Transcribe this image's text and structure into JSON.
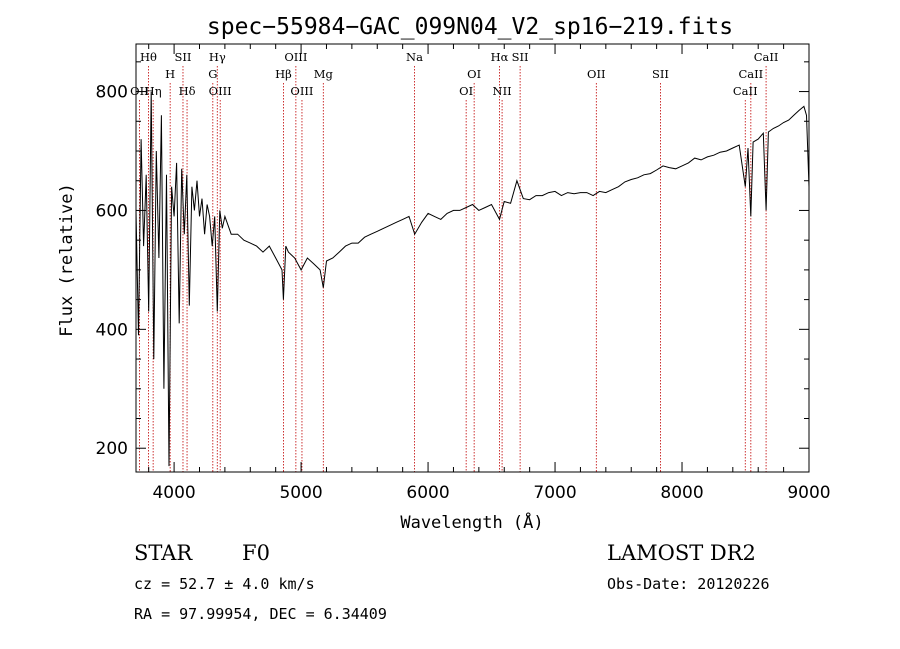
{
  "chart_data": {
    "type": "line",
    "title": "spec−55984−GAC_099N04_V2_sp16−219.fits",
    "xlabel": "Wavelength (Å)",
    "ylabel": "Flux (relative)",
    "xlim": [
      3700,
      9000
    ],
    "ylim": [
      160,
      880
    ],
    "grid": false,
    "xticks": [
      4000,
      5000,
      6000,
      7000,
      8000,
      9000
    ],
    "yticks": [
      200,
      400,
      600,
      800
    ],
    "series": [
      {
        "x": [
          3700,
          3720,
          3740,
          3760,
          3780,
          3800,
          3820,
          3840,
          3860,
          3880,
          3900,
          3920,
          3940,
          3960,
          3980,
          4000,
          4020,
          4040,
          4060,
          4080,
          4100,
          4120,
          4140,
          4160,
          4180,
          4200,
          4220,
          4240,
          4260,
          4280,
          4300,
          4320,
          4340,
          4360,
          4380,
          4400,
          4450,
          4500,
          4550,
          4600,
          4650,
          4700,
          4750,
          4800,
          4850,
          4861,
          4880,
          4900,
          4950,
          5000,
          5050,
          5100,
          5150,
          5175,
          5200,
          5250,
          5300,
          5350,
          5400,
          5450,
          5500,
          5550,
          5600,
          5650,
          5700,
          5750,
          5800,
          5850,
          5895,
          5950,
          6000,
          6050,
          6100,
          6150,
          6200,
          6250,
          6300,
          6350,
          6400,
          6450,
          6500,
          6563,
          6600,
          6650,
          6700,
          6750,
          6800,
          6850,
          6900,
          6950,
          7000,
          7050,
          7100,
          7150,
          7200,
          7250,
          7300,
          7350,
          7400,
          7450,
          7500,
          7550,
          7600,
          7650,
          7700,
          7750,
          7800,
          7850,
          7900,
          7950,
          8000,
          8050,
          8100,
          8150,
          8200,
          8250,
          8300,
          8350,
          8400,
          8450,
          8498,
          8520,
          8542,
          8560,
          8600,
          8640,
          8662,
          8680,
          8720,
          8760,
          8800,
          8840,
          8880,
          8920,
          8960,
          8980,
          9000
        ],
        "y": [
          600,
          390,
          720,
          540,
          660,
          430,
          800,
          350,
          700,
          520,
          760,
          300,
          660,
          170,
          640,
          590,
          680,
          410,
          670,
          560,
          660,
          440,
          640,
          600,
          650,
          590,
          620,
          560,
          610,
          590,
          540,
          590,
          430,
          600,
          570,
          590,
          560,
          560,
          550,
          545,
          540,
          530,
          540,
          520,
          500,
          450,
          540,
          530,
          520,
          500,
          520,
          510,
          500,
          470,
          515,
          520,
          530,
          540,
          545,
          545,
          555,
          560,
          565,
          570,
          575,
          580,
          585,
          590,
          560,
          580,
          595,
          590,
          585,
          595,
          600,
          600,
          605,
          610,
          600,
          605,
          610,
          585,
          615,
          612,
          650,
          620,
          618,
          625,
          625,
          630,
          632,
          625,
          630,
          628,
          630,
          630,
          625,
          632,
          630,
          635,
          640,
          648,
          652,
          655,
          660,
          662,
          668,
          675,
          672,
          670,
          675,
          680,
          688,
          685,
          690,
          693,
          698,
          700,
          705,
          710,
          640,
          705,
          590,
          715,
          720,
          730,
          600,
          732,
          738,
          742,
          748,
          752,
          760,
          768,
          775,
          760,
          640
        ]
      }
    ],
    "lines": [
      {
        "name": "Hθ",
        "x": 3798,
        "pos": "top"
      },
      {
        "name": "OII",
        "x": 3727,
        "pos": "low"
      },
      {
        "name": "Hη",
        "x": 3835,
        "pos": "low"
      },
      {
        "name": "H",
        "x": 3969,
        "pos": "mid"
      },
      {
        "name": "SII",
        "x": 4070,
        "pos": "top"
      },
      {
        "name": "Hδ",
        "x": 4102,
        "pos": "low"
      },
      {
        "name": "Hγ",
        "x": 4340,
        "pos": "top"
      },
      {
        "name": "G",
        "x": 4305,
        "pos": "mid"
      },
      {
        "name": "OIII",
        "x": 4363,
        "pos": "low"
      },
      {
        "name": "OIII",
        "x": 4959,
        "pos": "top"
      },
      {
        "name": "Hβ",
        "x": 4861,
        "pos": "mid"
      },
      {
        "name": "OIII",
        "x": 5007,
        "pos": "low"
      },
      {
        "name": "Mg",
        "x": 5175,
        "pos": "mid"
      },
      {
        "name": "Na",
        "x": 5893,
        "pos": "top"
      },
      {
        "name": "OI",
        "x": 6363,
        "pos": "mid"
      },
      {
        "name": "OI",
        "x": 6300,
        "pos": "low"
      },
      {
        "name": "Hα",
        "x": 6563,
        "pos": "top"
      },
      {
        "name": "SII",
        "x": 6725,
        "pos": "top"
      },
      {
        "name": "NII",
        "x": 6583,
        "pos": "low"
      },
      {
        "name": "OII",
        "x": 7325,
        "pos": "mid"
      },
      {
        "name": "SII",
        "x": 7830,
        "pos": "mid"
      },
      {
        "name": "CaII",
        "x": 8662,
        "pos": "top"
      },
      {
        "name": "CaII",
        "x": 8542,
        "pos": "mid"
      },
      {
        "name": "CaII",
        "x": 8498,
        "pos": "low"
      }
    ]
  },
  "info": {
    "class": "STAR",
    "subclass": "F0",
    "survey": "LAMOST DR2",
    "cz": "cz = 52.7 ± 4.0 km/s",
    "obs_date": "Obs-Date: 20120226",
    "coords": "RA =  97.99954, DEC =   6.34409"
  },
  "colors": {
    "spectrum": "#000000",
    "line_markers": "#c00000",
    "axes": "#000000"
  }
}
